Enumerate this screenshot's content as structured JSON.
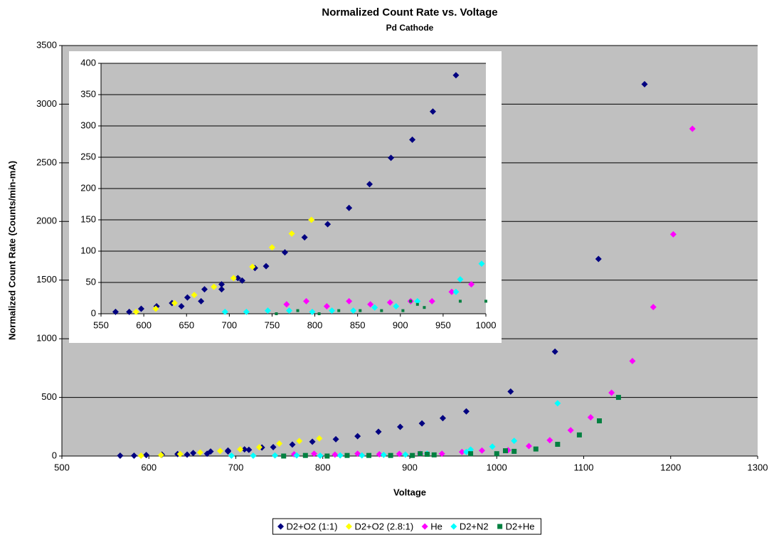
{
  "chart_data": [
    {
      "type": "scatter",
      "title": "Normalized Count Rate vs. Voltage",
      "subtitle": "Pd Cathode",
      "x_label": "Voltage",
      "y_label": "Normalized Count Rate (Counts/min-mA)",
      "xlim": [
        500,
        1300
      ],
      "xticks": [
        500,
        600,
        700,
        800,
        900,
        1000,
        1100,
        1200,
        1300
      ],
      "ylim": [
        0,
        3500
      ],
      "yticks": [
        0,
        500,
        1000,
        1500,
        2000,
        2500,
        3000,
        3500
      ],
      "grid": true,
      "legend": "bottom",
      "series": [
        {
          "name": "D2+O2 (1:1)",
          "color": "#000080",
          "marker": "diamond",
          "x": [
            567,
            583,
            597,
            615,
            633,
            644,
            651,
            667,
            671,
            691,
            691,
            710,
            715,
            730,
            743,
            765,
            788,
            815,
            840,
            864,
            889,
            914,
            938,
            965,
            1016,
            1067,
            1117,
            1170
          ],
          "values": [
            3,
            3,
            8,
            12,
            17,
            12,
            26,
            20,
            39,
            47,
            39,
            57,
            53,
            73,
            76,
            98,
            122,
            143,
            169,
            207,
            249,
            278,
            323,
            381,
            550,
            890,
            1680,
            3170
          ]
        },
        {
          "name": "D2+O2 (2.8:1)",
          "color": "#ffff00",
          "marker": "diamond",
          "x": [
            591,
            614,
            636,
            659,
            682,
            705,
            727,
            750,
            773,
            796
          ],
          "values": [
            3,
            8,
            17,
            30,
            43,
            57,
            75,
            106,
            128,
            150
          ]
        },
        {
          "name": "He",
          "color": "#ff00ff",
          "marker": "diamond",
          "x": [
            767,
            790,
            814,
            840,
            865,
            888,
            912,
            937,
            960,
            983,
            1013,
            1037,
            1061,
            1085,
            1108,
            1132,
            1156,
            1180,
            1203,
            1225
          ],
          "values": [
            15,
            20,
            12,
            20,
            15,
            18,
            20,
            20,
            35,
            47,
            50,
            85,
            135,
            220,
            330,
            540,
            810,
            1270,
            1890,
            2790
          ]
        },
        {
          "name": "D2+N2",
          "color": "#00ffff",
          "marker": "diamond",
          "x": [
            695,
            720,
            745,
            770,
            797,
            820,
            845,
            870,
            895,
            920,
            965,
            970,
            995,
            1020,
            1070
          ],
          "values": [
            3,
            3,
            5,
            5,
            3,
            5,
            5,
            10,
            12,
            20,
            35,
            55,
            80,
            130,
            450
          ]
        },
        {
          "name": "D2+He",
          "color": "#008040",
          "marker": "square",
          "x": [
            755,
            780,
            805,
            828,
            853,
            878,
            903,
            912,
            920,
            928,
            970,
            1000,
            1010,
            1020,
            1045,
            1070,
            1095,
            1118,
            1140
          ],
          "values": [
            0,
            5,
            0,
            5,
            5,
            5,
            5,
            20,
            15,
            10,
            20,
            20,
            45,
            40,
            60,
            100,
            180,
            300,
            500
          ]
        }
      ]
    },
    {
      "type": "scatter",
      "xlim": [
        550,
        1000
      ],
      "xticks": [
        550,
        600,
        650,
        700,
        750,
        800,
        850,
        900,
        950,
        1000
      ],
      "ylim": [
        0,
        400
      ],
      "yticks": [
        0,
        50,
        100,
        150,
        200,
        250,
        300,
        350,
        400
      ],
      "grid": true,
      "series": [
        {
          "color": "#000080",
          "marker": "diamond",
          "x": [
            567,
            583,
            597,
            615,
            633,
            644,
            651,
            667,
            671,
            691,
            691,
            710,
            715,
            730,
            743,
            765,
            788,
            815,
            840,
            864,
            889,
            914,
            938,
            965
          ],
          "values": [
            3,
            3,
            8,
            12,
            17,
            12,
            26,
            20,
            39,
            47,
            39,
            57,
            53,
            73,
            76,
            98,
            122,
            143,
            169,
            207,
            249,
            278,
            323,
            381
          ]
        },
        {
          "color": "#ffff00",
          "marker": "diamond",
          "x": [
            591,
            614,
            636,
            659,
            682,
            705,
            727,
            750,
            773,
            796
          ],
          "values": [
            3,
            8,
            17,
            30,
            43,
            57,
            75,
            106,
            128,
            150
          ]
        },
        {
          "color": "#ff00ff",
          "marker": "diamond",
          "x": [
            767,
            790,
            814,
            840,
            865,
            888,
            912,
            937,
            960,
            983
          ],
          "values": [
            15,
            20,
            12,
            20,
            15,
            18,
            20,
            20,
            35,
            47
          ]
        },
        {
          "color": "#00ffff",
          "marker": "diamond",
          "x": [
            695,
            720,
            745,
            770,
            797,
            820,
            845,
            870,
            895,
            920,
            965,
            970,
            995
          ],
          "values": [
            3,
            3,
            5,
            5,
            3,
            5,
            5,
            10,
            12,
            20,
            35,
            55,
            80
          ]
        },
        {
          "color": "#008040",
          "marker": "square-small",
          "x": [
            755,
            780,
            805,
            828,
            853,
            878,
            903,
            912,
            920,
            928,
            970,
            1000
          ],
          "values": [
            0,
            5,
            0,
            5,
            5,
            5,
            5,
            20,
            15,
            10,
            20,
            20
          ]
        }
      ]
    }
  ]
}
